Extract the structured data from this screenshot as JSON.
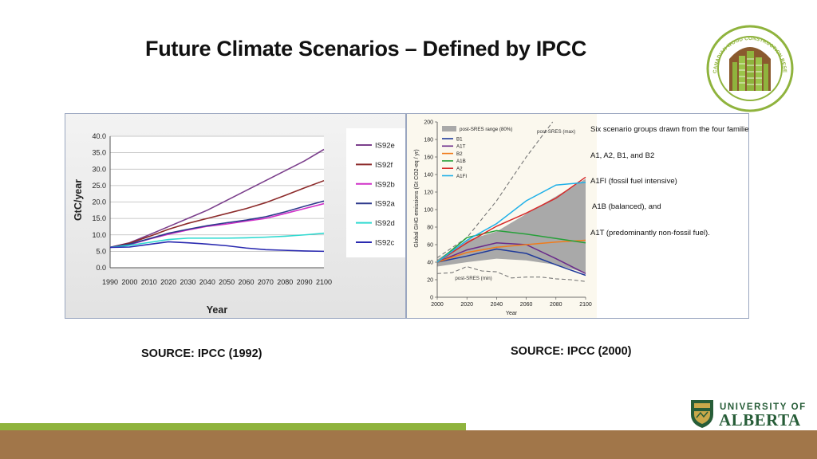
{
  "slide": {
    "title": "Future Climate Scenarios – Defined by IPCC",
    "source_left": "SOURCE: IPCC (1992)",
    "source_right": "SOURCE: IPCC (2000)"
  },
  "logos": {
    "cwc_text": "CANADIAN WOOD CONSTRUCTION RESEARCH NETWORK",
    "ua_line1": "UNIVERSITY OF",
    "ua_line2": "ALBERTA"
  },
  "colors": {
    "green": "#8fb33d",
    "brown": "#a17649",
    "ua_green": "#275d38",
    "ua_gold": "#c9a84a"
  },
  "chart_data": [
    {
      "type": "line",
      "xlabel": "Year",
      "ylabel": "GtC/year",
      "x": [
        1990,
        2000,
        2010,
        2020,
        2030,
        2040,
        2050,
        2060,
        2070,
        2080,
        2090,
        2100
      ],
      "ylim": [
        0,
        40
      ],
      "yticks": [
        "0.0",
        "5.0",
        "10.0",
        "15.0",
        "20.0",
        "25.0",
        "30.0",
        "35.0",
        "40.0"
      ],
      "xticks": [
        "1990",
        "2000",
        "2010",
        "2020",
        "2030",
        "2040",
        "2050",
        "2060",
        "2070",
        "2080",
        "2090",
        "2100"
      ],
      "series": [
        {
          "name": "IS92e",
          "color": "#7b3f8c",
          "values": [
            6.2,
            7.6,
            10.0,
            12.5,
            15.0,
            17.5,
            20.5,
            23.5,
            26.5,
            29.5,
            32.5,
            36.0
          ]
        },
        {
          "name": "IS92f",
          "color": "#8c2a2a",
          "values": [
            6.2,
            7.5,
            9.5,
            11.7,
            13.5,
            15.0,
            16.5,
            18.0,
            19.8,
            22.0,
            24.3,
            26.5
          ]
        },
        {
          "name": "IS92b",
          "color": "#d030c8",
          "values": [
            6.2,
            7.0,
            8.7,
            10.2,
            11.5,
            12.6,
            13.3,
            14.2,
            15.0,
            16.5,
            18.0,
            19.5
          ]
        },
        {
          "name": "IS92a",
          "color": "#2e3a8c",
          "values": [
            6.2,
            7.2,
            8.8,
            10.5,
            11.7,
            12.8,
            13.7,
            14.5,
            15.5,
            17.0,
            18.7,
            20.3
          ]
        },
        {
          "name": "IS92d",
          "color": "#2fd9d0",
          "values": [
            6.2,
            6.8,
            7.7,
            8.6,
            9.0,
            9.0,
            9.0,
            9.1,
            9.3,
            9.6,
            10.0,
            10.5
          ]
        },
        {
          "name": "IS92c",
          "color": "#2a2ab0",
          "values": [
            6.2,
            6.3,
            7.1,
            7.9,
            7.6,
            7.2,
            6.7,
            6.0,
            5.5,
            5.3,
            5.1,
            5.0
          ]
        }
      ]
    },
    {
      "type": "line",
      "xlabel": "Year",
      "ylabel": "Global GHG emissions (Gt CO2-eq / yr)",
      "x": [
        2000,
        2020,
        2040,
        2060,
        2080,
        2100
      ],
      "ylim": [
        0,
        200
      ],
      "yticks": [
        "0",
        "20",
        "40",
        "60",
        "80",
        "100",
        "120",
        "140",
        "160",
        "180",
        "200"
      ],
      "xticks": [
        "2000",
        "2020",
        "2040",
        "2060",
        "2080",
        "2100"
      ],
      "range_label": "post-SRES range (80%)",
      "max_label": "post-SRES (max)",
      "min_label": "post-SRES (min)",
      "range_band": {
        "x": [
          2000,
          2020,
          2040,
          2060,
          2080,
          2100
        ],
        "upper": [
          43,
          65,
          75,
          95,
          115,
          135
        ],
        "lower": [
          35,
          40,
          44,
          42,
          37,
          28
        ]
      },
      "max_line": {
        "x": [
          2000,
          2020,
          2040,
          2060,
          2080,
          2100
        ],
        "values": [
          45,
          68,
          110,
          160,
          205,
          240
        ]
      },
      "min_line": {
        "x": [
          2000,
          2010,
          2020,
          2030,
          2040,
          2050,
          2060,
          2070,
          2080,
          2090,
          2100
        ],
        "values": [
          27,
          28,
          35,
          30,
          29,
          22,
          23,
          23,
          21,
          20,
          18
        ]
      },
      "series": [
        {
          "name": "B1",
          "color": "#1f3a9a",
          "values": [
            40,
            47,
            55,
            50,
            37,
            25
          ]
        },
        {
          "name": "A1T",
          "color": "#6a2a8a",
          "values": [
            40,
            54,
            62,
            60,
            44,
            27
          ]
        },
        {
          "name": "B2",
          "color": "#f07c1c",
          "values": [
            40,
            51,
            57,
            60,
            63,
            65
          ]
        },
        {
          "name": "A1B",
          "color": "#27a03a",
          "values": [
            40,
            68,
            76,
            72,
            67,
            62
          ]
        },
        {
          "name": "A2",
          "color": "#d62a2a",
          "values": [
            40,
            62,
            81,
            96,
            113,
            137
          ]
        },
        {
          "name": "A1FI",
          "color": "#1fb0e8",
          "values": [
            40,
            65,
            84,
            110,
            128,
            131
          ]
        }
      ],
      "annotations": [
        "Six scenario groups drawn from the four families",
        "A1, A2, B1, and B2",
        "A1FI (fossil fuel intensive)",
        "A1B (balanced), and",
        "A1T (predominantly non-fossil fuel)."
      ]
    }
  ]
}
